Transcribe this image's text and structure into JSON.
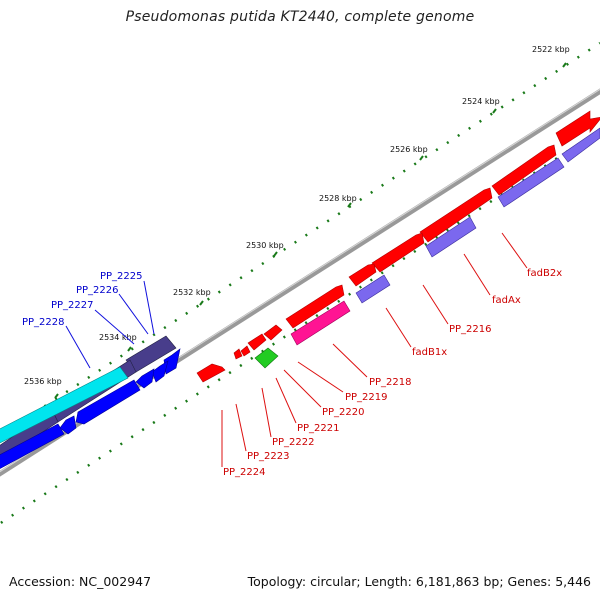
{
  "title": "Pseudomonas putida KT2440, complete genome",
  "footer": {
    "accession": "Accession: NC_002947",
    "summary": "Topology: circular; Length: 6,181,863 bp; Genes: 5,446"
  },
  "scale_labels": [
    "2522 kbp",
    "2524 kbp",
    "2526 kbp",
    "2528 kbp",
    "2530 kbp",
    "2532 kbp",
    "2534 kbp",
    "2536 kbp"
  ],
  "gene_labels": {
    "forward": [
      "fadB2x",
      "fadAx",
      "PP_2216",
      "fadB1x",
      "PP_2218",
      "PP_2219",
      "PP_2220",
      "PP_2221",
      "PP_2222",
      "PP_2223",
      "PP_2224"
    ],
    "reverse": [
      "PP_2225",
      "PP_2226",
      "PP_2227",
      "PP_2228"
    ]
  },
  "colors": {
    "forward_cds": "#ff0000",
    "reverse_cds": "#0000ff",
    "forward_orf": "#7b68ee",
    "forward_rna": "#ff1493",
    "highlight": "#22cc22",
    "reverse_orf": "#483d8b",
    "reverse_rna": "#00e5ee",
    "backbone": "#808080",
    "gc_ticks": "#1a7a1a"
  }
}
